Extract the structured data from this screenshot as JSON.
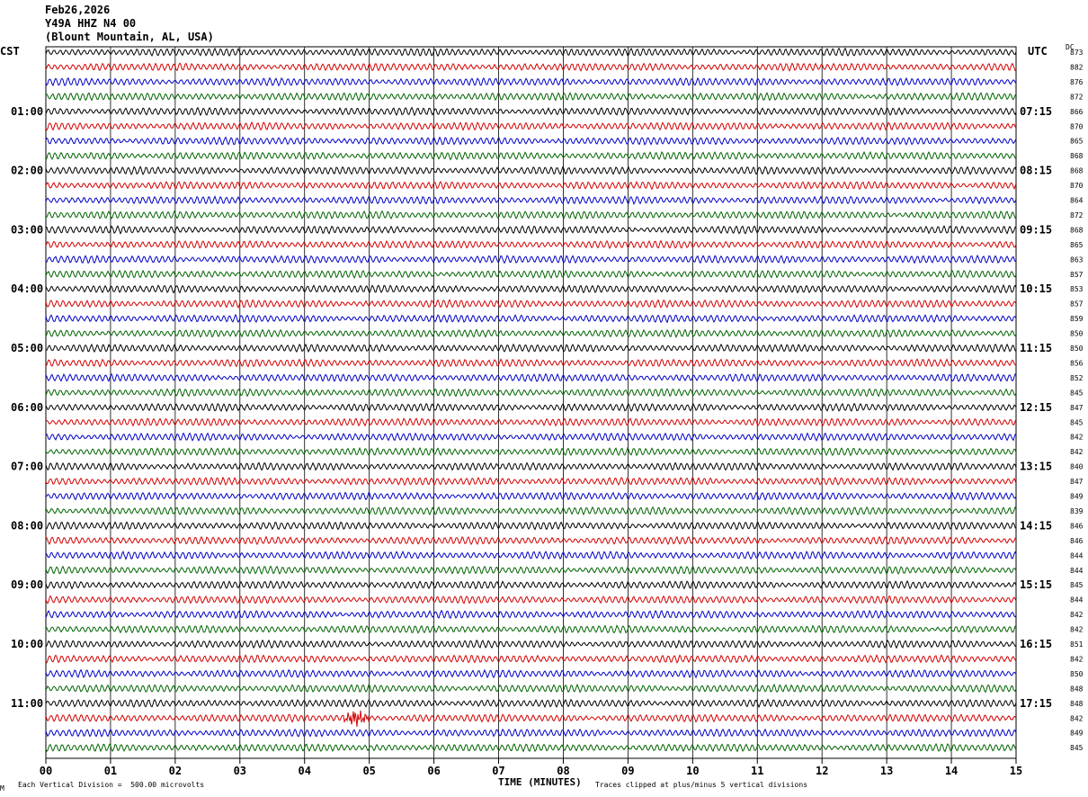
{
  "header": {
    "date": "Feb26,2026",
    "station": "Y49A HHZ N4 00",
    "location": "(Blount Mountain, AL, USA)"
  },
  "left_tz": "CST",
  "right_tz": "UTC",
  "dc_label": "DC",
  "footer": {
    "scale_note": "Each Vertical Division =  500.00 microvolts",
    "xlabel": "TIME (MINUTES)",
    "clip_note": "Traces clipped at plus/minus 5 vertical divisions",
    "corner_mark": "M"
  },
  "chart_data": {
    "type": "line",
    "title": "Y49A HHZ N4 00",
    "xlabel": "TIME (MINUTES)",
    "xlim": [
      0,
      15
    ],
    "x_ticks": [
      "00",
      "01",
      "02",
      "03",
      "04",
      "05",
      "06",
      "07",
      "08",
      "09",
      "10",
      "11",
      "12",
      "13",
      "14",
      "15"
    ],
    "trace_colors": [
      "#000000",
      "#d40000",
      "#0000c8",
      "#006400"
    ],
    "left_hour_labels": [
      "01:00",
      "02:00",
      "03:00",
      "04:00",
      "05:00",
      "06:00",
      "07:00",
      "08:00",
      "09:00",
      "10:00",
      "11:00"
    ],
    "right_hour_labels": [
      "07:15",
      "08:15",
      "09:15",
      "10:15",
      "11:15",
      "12:15",
      "13:15",
      "14:15",
      "15:15",
      "16:15",
      "17:15"
    ],
    "dc_offsets": [
      873,
      882,
      876,
      872,
      866,
      870,
      865,
      868,
      868,
      870,
      864,
      872,
      868,
      865,
      863,
      857,
      853,
      857,
      859,
      850,
      850,
      856,
      852,
      845,
      847,
      845,
      842,
      842,
      840,
      847,
      849,
      839,
      846,
      846,
      844,
      844,
      845,
      844,
      842,
      842,
      851,
      842,
      850,
      848,
      848,
      842,
      849,
      845
    ],
    "event": {
      "trace_index": 45,
      "minute_start": 4.6,
      "minute_end": 5.0
    }
  }
}
